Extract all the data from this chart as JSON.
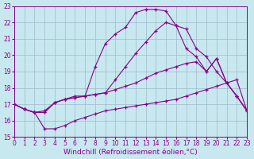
{
  "background_color": "#c8e8f0",
  "grid_color": "#a0b8cc",
  "line_color": "#880088",
  "xlabel": "Windchill (Refroidissement éolien,°C)",
  "xlim": [
    0,
    23
  ],
  "ylim": [
    15,
    23
  ],
  "x_ticks": [
    0,
    1,
    2,
    3,
    4,
    5,
    6,
    7,
    8,
    9,
    10,
    11,
    12,
    13,
    14,
    15,
    16,
    17,
    18,
    19,
    20,
    21,
    22,
    23
  ],
  "y_ticks": [
    15,
    16,
    17,
    18,
    19,
    20,
    21,
    22,
    23
  ],
  "line1_x": [
    0,
    1,
    2,
    3,
    4,
    5,
    6,
    7,
    8,
    9,
    10,
    11,
    12,
    13,
    14,
    15,
    16,
    17,
    18,
    19,
    20,
    21,
    22,
    23
  ],
  "line1_y": [
    17.0,
    16.7,
    16.5,
    15.5,
    15.5,
    15.7,
    16.0,
    16.2,
    16.4,
    16.6,
    16.7,
    16.8,
    16.9,
    17.0,
    17.1,
    17.2,
    17.3,
    17.5,
    17.7,
    17.9,
    18.1,
    18.3,
    18.5,
    16.6
  ],
  "line2_x": [
    0,
    1,
    2,
    3,
    4,
    5,
    6,
    7,
    8,
    9,
    10,
    11,
    12,
    13,
    14,
    15,
    16,
    17,
    18,
    19,
    20,
    21,
    22,
    23
  ],
  "line2_y": [
    17.0,
    16.7,
    16.5,
    16.5,
    17.1,
    17.3,
    17.4,
    17.5,
    17.6,
    17.7,
    17.9,
    18.1,
    18.3,
    18.6,
    18.9,
    19.1,
    19.3,
    19.5,
    19.6,
    19.0,
    19.8,
    18.3,
    17.5,
    16.6
  ],
  "line3_x": [
    0,
    1,
    2,
    3,
    4,
    5,
    6,
    7,
    8,
    9,
    10,
    11,
    12,
    13,
    14,
    15,
    16,
    17,
    18,
    19,
    20,
    21,
    22,
    23
  ],
  "line3_y": [
    17.0,
    16.7,
    16.5,
    16.6,
    17.1,
    17.3,
    17.4,
    17.5,
    17.6,
    17.7,
    18.5,
    19.3,
    20.1,
    20.8,
    21.5,
    22.0,
    21.8,
    20.4,
    19.9,
    19.0,
    19.8,
    18.3,
    17.5,
    16.6
  ],
  "line4_x": [
    0,
    1,
    2,
    3,
    4,
    5,
    6,
    7,
    8,
    9,
    10,
    11,
    12,
    13,
    14,
    15,
    16,
    17,
    18,
    19,
    20,
    21,
    22,
    23
  ],
  "line4_y": [
    17.0,
    16.7,
    16.5,
    16.5,
    17.1,
    17.3,
    17.5,
    17.5,
    19.3,
    20.7,
    21.3,
    21.7,
    22.6,
    22.8,
    22.8,
    22.7,
    21.8,
    21.6,
    20.4,
    19.9,
    19.0,
    18.3,
    17.5,
    16.6
  ],
  "tick_fontsize": 5.5,
  "xlabel_fontsize": 6.5
}
